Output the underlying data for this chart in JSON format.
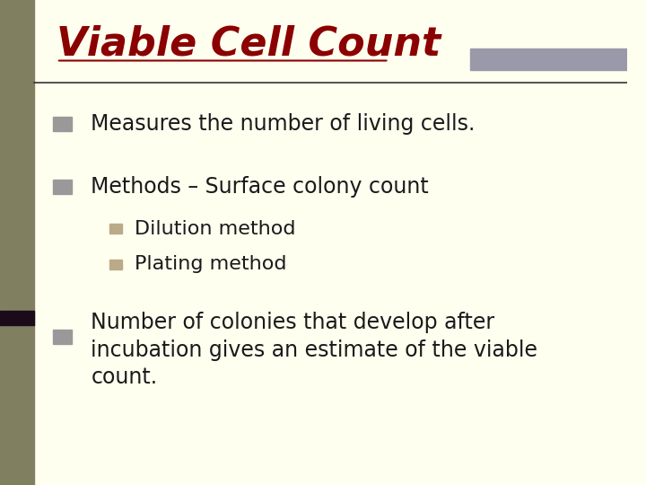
{
  "title": "Viable Cell Count",
  "title_color": "#8B0000",
  "title_fontsize": 32,
  "background_color": "#FFFFF0",
  "left_bar_color": "#808060",
  "top_bar_color": "#9999AA",
  "separator_line_color": "#333333",
  "bullet_color_main": "#999999",
  "bullet_color_sub": "#BBAA88",
  "dark_bar_color": "#1a0a1a",
  "bullet1": "Measures the number of living cells.",
  "bullet2": "Methods – Surface colony count",
  "sub_bullet1": "Dilution method",
  "sub_bullet2": "Plating method",
  "bullet3_line1": "Number of colonies that develop after",
  "bullet3_line2": "incubation gives an estimate of the viable",
  "bullet3_line3": "count.",
  "text_color": "#1a1a1a",
  "text_fontsize": 17,
  "sub_text_fontsize": 16
}
